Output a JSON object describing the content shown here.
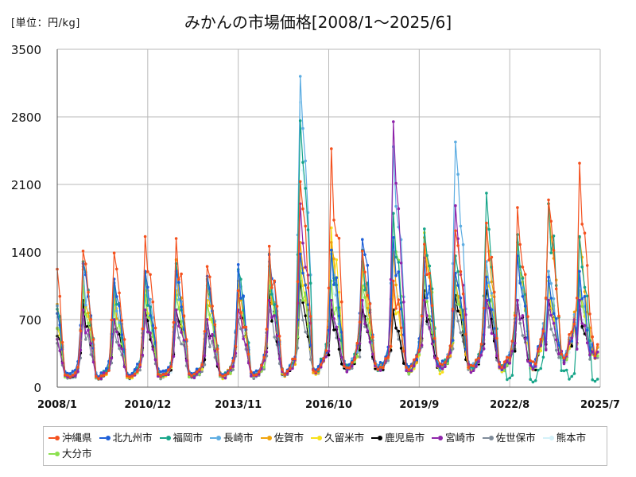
{
  "unit_label": "[単位：円/kg]",
  "title": "みかんの市場価格[2008/1～2025/6]",
  "chart_data": {
    "type": "line",
    "title": "みかんの市場価格[2008/1～2025/6]",
    "ylabel": "[単位：円/kg]",
    "ylim": [
      0,
      3500
    ],
    "yticks": [
      0,
      700,
      1400,
      2100,
      2800,
      3500
    ],
    "xticks": [
      "2008/1",
      "2010/12",
      "2013/11",
      "2016/10",
      "2019/9",
      "2022/8",
      "2025/7"
    ],
    "grid": true,
    "legend_position": "bottom",
    "series": [
      {
        "name": "沖縄県",
        "color": "#F4511E",
        "peaks": [
          1520,
          1410,
          1390,
          1560,
          1540,
          1250,
          1000,
          1460,
          2130,
          2470,
          1410,
          1100,
          1480,
          1620,
          1700,
          1860,
          1940,
          2320
        ],
        "lows": [
          110,
          100,
          100,
          120,
          110,
          110,
          120,
          140,
          170,
          210,
          200,
          180,
          220,
          200,
          210,
          230,
          320,
          380
        ]
      },
      {
        "name": "北九州市",
        "color": "#1E5FD8",
        "peaks": [
          1200,
          1280,
          1120,
          1200,
          1200,
          1150,
          1270,
          1370,
          1380,
          1420,
          1530,
          1550,
          1340,
          1180,
          1140,
          1360,
          1140,
          1200
        ],
        "lows": [
          130,
          120,
          130,
          140,
          130,
          130,
          140,
          150,
          180,
          210,
          220,
          190,
          220,
          210,
          200,
          230,
          310,
          360
        ]
      },
      {
        "name": "福岡市",
        "color": "#17A589",
        "peaks": [
          1180,
          1300,
          1080,
          1180,
          1280,
          1120,
          1220,
          1380,
          2760,
          1420,
          1420,
          1800,
          1640,
          1360,
          2010,
          1580,
          1900,
          1560
        ],
        "lows": [
          120,
          110,
          110,
          120,
          120,
          120,
          130,
          140,
          170,
          200,
          200,
          180,
          210,
          200,
          200,
          60,
          150,
          70
        ]
      },
      {
        "name": "長崎市",
        "color": "#5DADE2",
        "peaks": [
          1150,
          1250,
          1050,
          1150,
          1150,
          1100,
          1200,
          1300,
          3220,
          1380,
          1400,
          2490,
          1300,
          2540,
          1300,
          1400,
          1200,
          1100
        ],
        "lows": [
          120,
          110,
          120,
          130,
          120,
          120,
          130,
          140,
          170,
          200,
          200,
          180,
          210,
          200,
          200,
          210,
          300,
          350
        ]
      },
      {
        "name": "佐賀市",
        "color": "#F0A30A",
        "peaks": [
          1100,
          1220,
          1000,
          1100,
          1320,
          1050,
          1100,
          1250,
          1500,
          1500,
          1300,
          1400,
          1550,
          1100,
          1650,
          1500,
          1900,
          1550
        ],
        "lows": [
          110,
          100,
          110,
          120,
          110,
          110,
          120,
          130,
          130,
          180,
          190,
          170,
          200,
          190,
          190,
          200,
          290,
          340
        ]
      },
      {
        "name": "久留米市",
        "color": "#F7E018",
        "peaks": [
          1000,
          1100,
          900,
          1000,
          1000,
          900,
          1000,
          1100,
          1300,
          1650,
          1200,
          1000,
          1600,
          1100,
          1200,
          1400,
          1100,
          1000
        ],
        "lows": [
          100,
          90,
          100,
          110,
          100,
          100,
          110,
          120,
          150,
          180,
          180,
          160,
          160,
          180,
          180,
          190,
          280,
          330
        ]
      },
      {
        "name": "鹿児島市",
        "color": "#000000",
        "peaks": [
          800,
          900,
          700,
          800,
          800,
          700,
          1000,
          1000,
          1100,
          800,
          800,
          800,
          1000,
          950,
          1000,
          900,
          900,
          900
        ],
        "lows": [
          100,
          90,
          100,
          110,
          100,
          100,
          110,
          120,
          150,
          180,
          180,
          160,
          190,
          180,
          180,
          190,
          280,
          330
        ]
      },
      {
        "name": "宮崎市",
        "color": "#8E24AA",
        "peaks": [
          700,
          800,
          700,
          800,
          800,
          700,
          800,
          900,
          1900,
          900,
          900,
          2750,
          900,
          1880,
          900,
          900,
          900,
          900
        ],
        "lows": [
          100,
          90,
          100,
          110,
          100,
          100,
          110,
          120,
          150,
          180,
          180,
          160,
          190,
          180,
          180,
          190,
          280,
          330
        ]
      },
      {
        "name": "佐世保市",
        "color": "#7F8C9A",
        "peaks": [
          600,
          700,
          600,
          700,
          700,
          600,
          700,
          800,
          900,
          800,
          800,
          800,
          900,
          850,
          900,
          850,
          800,
          800
        ],
        "lows": [
          90,
          80,
          90,
          100,
          90,
          90,
          100,
          110,
          140,
          170,
          170,
          150,
          180,
          170,
          170,
          180,
          270,
          320
        ]
      },
      {
        "name": "熊本市",
        "color": "#D4F1F9",
        "peaks": [
          900,
          1000,
          800,
          900,
          900,
          800,
          900,
          1000,
          2950,
          1100,
          1000,
          1200,
          1100,
          1100,
          1200,
          1100,
          1000,
          1000
        ],
        "lows": [
          90,
          80,
          90,
          100,
          90,
          90,
          100,
          110,
          140,
          170,
          170,
          150,
          180,
          170,
          170,
          180,
          270,
          320
        ]
      },
      {
        "name": "大分市",
        "color": "#8BE04E",
        "peaks": [
          950,
          1050,
          850,
          950,
          950,
          850,
          950,
          1050,
          1200,
          1100,
          1050,
          1800,
          1150,
          1100,
          1150,
          1500,
          1100,
          1000
        ],
        "lows": [
          100,
          90,
          100,
          110,
          100,
          100,
          110,
          120,
          150,
          180,
          180,
          160,
          190,
          180,
          180,
          190,
          280,
          330
        ]
      }
    ]
  }
}
